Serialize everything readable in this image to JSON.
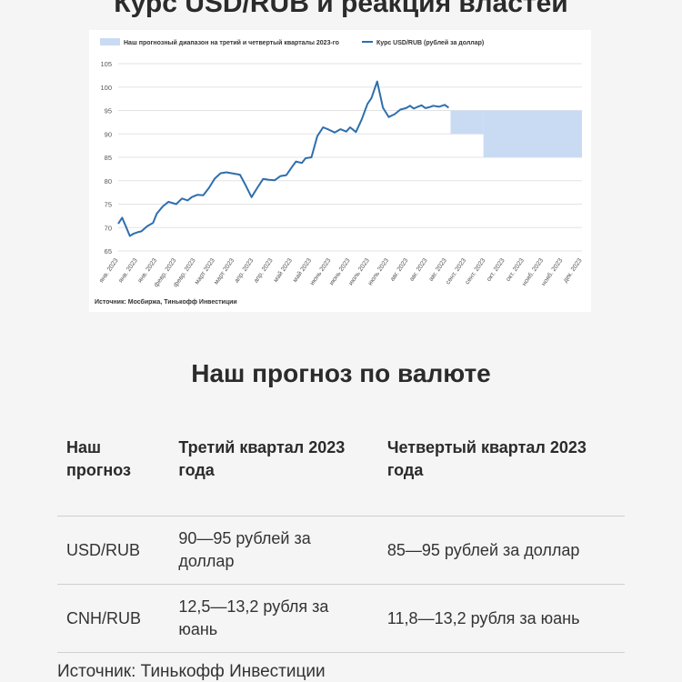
{
  "page_title": "Курс USD/RUB и реакция властей",
  "chart_data": {
    "type": "line",
    "legend": {
      "placement": "top",
      "band_label": "Наш прогнозный диапазон на третий и четвертый кварталы 2023-го",
      "line_label": "Курс USD/RUB (рублей за доллар)"
    },
    "source": "Источник: Мосбиржа, Тинькофф Инвестиции",
    "ylim": [
      65,
      105
    ],
    "yticks": [
      65,
      70,
      75,
      80,
      85,
      90,
      95,
      100,
      105
    ],
    "xlim": [
      0,
      24
    ],
    "xtick_labels": [
      "янв. 2023",
      "янв. 2023",
      "янв. 2023",
      "февр. 2023",
      "февр. 2023",
      "март 2023",
      "март 2023",
      "апр. 2023",
      "апр. 2023",
      "май 2023",
      "май 2023",
      "июнь 2023",
      "июнь 2023",
      "июль 2023",
      "июль 2023",
      "авг. 2023",
      "авг. 2023",
      "авг. 2023",
      "сент. 2023",
      "сент. 2023",
      "окт. 2023",
      "окт. 2023",
      "нояб. 2023",
      "нояб. 2023",
      "дек. 2023"
    ],
    "grid": true,
    "colors": {
      "line": "#2f6fad",
      "band": "#c9dbf3",
      "grid": "#e3e3e3"
    },
    "series": [
      {
        "name": "Курс USD/RUB (рублей за доллар)",
        "x": [
          0,
          0.2,
          0.4,
          0.6,
          0.8,
          1.0,
          1.2,
          1.5,
          1.8,
          2.0,
          2.3,
          2.6,
          3.0,
          3.3,
          3.6,
          3.8,
          4.1,
          4.4,
          4.7,
          5.0,
          5.3,
          5.6,
          6.0,
          6.3,
          6.6,
          6.9,
          7.2,
          7.5,
          7.8,
          8.1,
          8.4,
          8.7,
          9.0,
          9.2,
          9.5,
          9.7,
          10.0,
          10.3,
          10.6,
          10.9,
          11.2,
          11.5,
          11.8,
          12.0,
          12.3,
          12.6,
          12.9,
          13.1,
          13.4,
          13.7,
          14.0,
          14.3,
          14.6,
          14.9,
          15.1,
          15.3,
          15.5,
          15.7,
          15.9,
          16.1,
          16.3,
          16.6,
          16.9,
          17.1
        ],
        "y": [
          70.8,
          72.1,
          70.2,
          68.2,
          68.7,
          69.0,
          69.2,
          70.3,
          71.0,
          73.0,
          74.5,
          75.5,
          75.0,
          76.2,
          75.8,
          76.5,
          77.0,
          76.9,
          78.5,
          80.5,
          81.6,
          81.8,
          81.5,
          81.3,
          79.0,
          76.5,
          78.5,
          80.4,
          80.2,
          80.1,
          81.0,
          81.2,
          83.0,
          84.1,
          83.8,
          84.8,
          85.0,
          89.5,
          91.4,
          90.9,
          90.3,
          91.0,
          90.5,
          91.4,
          90.4,
          93.1,
          96.4,
          97.6,
          101.2,
          95.6,
          93.6,
          94.2,
          95.2,
          95.5,
          96.0,
          95.4,
          95.8,
          96.1,
          95.5,
          95.7,
          96.0,
          95.8,
          96.2,
          95.6
        ]
      }
    ],
    "forecast_band": [
      {
        "x_from": 17.2,
        "x_to": 18.9,
        "y_low": 90,
        "y_high": 95
      },
      {
        "x_from": 18.9,
        "x_to": 24,
        "y_low": 85,
        "y_high": 95
      }
    ]
  },
  "forecast_section": {
    "title": "Наш прогноз по валюте",
    "headers": [
      "Наш прогноз",
      "Третий квартал 2023 года",
      "Четвертый квартал 2023 года"
    ],
    "rows": [
      [
        "USD/RUB",
        "90—95 рублей за доллар",
        "85—95 рублей за доллар"
      ],
      [
        "CNH/RUB",
        "12,5—13,2 рубля за юань",
        "11,8—13,2 рубля за юань"
      ]
    ]
  },
  "footer_source": "Источник: Тинькофф Инвестиции"
}
